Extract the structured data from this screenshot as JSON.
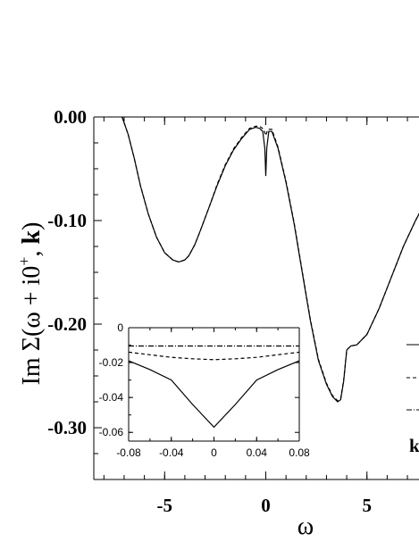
{
  "chart_data": [
    {
      "type": "line",
      "xlabel": "ω",
      "ylabel": "Im Σ(ω + i0⁺, k)",
      "ylabel_parts": {
        "prefix": "Im Σ(ω + i0",
        "sup": "+",
        "suffix": ", ",
        "bold": "k",
        "close": ")"
      },
      "xlim": [
        -8.5,
        8.5
      ],
      "ylim": [
        -0.35,
        0.0
      ],
      "xticks": [
        {
          "v": -5,
          "label": "-5"
        },
        {
          "v": 0,
          "label": "0"
        },
        {
          "v": 5,
          "label": "5"
        }
      ],
      "yticks": [
        {
          "v": 0.0,
          "label": "0.00"
        },
        {
          "v": -0.1,
          "label": "-0.10"
        },
        {
          "v": -0.2,
          "label": "-0.20"
        },
        {
          "v": -0.3,
          "label": "-0.30"
        }
      ],
      "legend_symbol": "k",
      "series": [
        {
          "style": "solid",
          "x": [
            -7.1,
            -6.8,
            -6.5,
            -6.2,
            -5.8,
            -5.4,
            -5.0,
            -4.6,
            -4.3,
            -4.0,
            -3.8,
            -3.5,
            -3.2,
            -2.8,
            -2.4,
            -2.0,
            -1.6,
            -1.2,
            -0.8,
            -0.5,
            -0.3,
            -0.15,
            -0.05,
            0.0,
            0.05,
            0.15,
            0.3,
            0.6,
            1.0,
            1.4,
            1.8,
            2.2,
            2.6,
            3.0,
            3.3,
            3.55,
            3.7,
            3.85,
            4.0,
            4.2,
            4.5,
            5.0,
            5.6,
            6.2,
            6.8,
            7.4,
            8.0,
            8.5
          ],
          "y": [
            0.0,
            -0.017,
            -0.04,
            -0.066,
            -0.094,
            -0.116,
            -0.131,
            -0.138,
            -0.14,
            -0.138,
            -0.134,
            -0.123,
            -0.108,
            -0.087,
            -0.066,
            -0.047,
            -0.032,
            -0.021,
            -0.012,
            -0.01,
            -0.011,
            -0.014,
            -0.03,
            -0.057,
            -0.03,
            -0.014,
            -0.014,
            -0.03,
            -0.063,
            -0.103,
            -0.15,
            -0.196,
            -0.235,
            -0.258,
            -0.27,
            -0.275,
            -0.273,
            -0.255,
            -0.225,
            -0.221,
            -0.22,
            -0.21,
            -0.185,
            -0.155,
            -0.125,
            -0.1,
            -0.078,
            -0.068
          ]
        },
        {
          "style": "dashed",
          "x": [
            -7.1,
            -6.8,
            -6.5,
            -6.2,
            -5.8,
            -5.4,
            -5.0,
            -4.6,
            -4.3,
            -4.0,
            -3.8,
            -3.5,
            -3.2,
            -2.8,
            -2.4,
            -2.0,
            -1.6,
            -1.2,
            -0.8,
            -0.5,
            -0.3,
            -0.1,
            0.0,
            0.1,
            0.3,
            0.6,
            1.0,
            1.4,
            1.8,
            2.2,
            2.6,
            3.0,
            3.3,
            3.55,
            3.7,
            3.85,
            4.0,
            4.2,
            4.5,
            5.0,
            5.6,
            6.2,
            6.8,
            7.4,
            8.0,
            8.5
          ],
          "y": [
            0.0,
            -0.017,
            -0.04,
            -0.066,
            -0.094,
            -0.116,
            -0.131,
            -0.138,
            -0.14,
            -0.138,
            -0.134,
            -0.123,
            -0.108,
            -0.087,
            -0.065,
            -0.046,
            -0.031,
            -0.02,
            -0.011,
            -0.009,
            -0.009,
            -0.012,
            -0.018,
            -0.012,
            -0.012,
            -0.029,
            -0.062,
            -0.102,
            -0.149,
            -0.195,
            -0.234,
            -0.257,
            -0.269,
            -0.274,
            -0.272,
            -0.254,
            -0.225,
            -0.221,
            -0.22,
            -0.21,
            -0.185,
            -0.155,
            -0.125,
            -0.1,
            -0.078,
            -0.068
          ]
        }
      ]
    },
    {
      "type": "line",
      "xlim": [
        -0.08,
        0.08
      ],
      "ylim": [
        -0.065,
        0.0
      ],
      "xticks": [
        {
          "v": -0.08,
          "label": "-0.08"
        },
        {
          "v": -0.04,
          "label": "-0.04"
        },
        {
          "v": 0.0,
          "label": "0"
        },
        {
          "v": 0.04,
          "label": "0.04"
        },
        {
          "v": 0.08,
          "label": "0.08"
        }
      ],
      "yticks": [
        {
          "v": 0.0,
          "label": "0"
        },
        {
          "v": -0.02,
          "label": "-0.02"
        },
        {
          "v": -0.04,
          "label": "-0.04"
        },
        {
          "v": -0.06,
          "label": "-0.06"
        }
      ],
      "series": [
        {
          "style": "solid",
          "x": [
            -0.08,
            -0.06,
            -0.04,
            -0.02,
            0.0,
            0.02,
            0.04,
            0.06,
            0.08
          ],
          "y": [
            -0.019,
            -0.024,
            -0.03,
            -0.044,
            -0.057,
            -0.044,
            -0.03,
            -0.024,
            -0.019
          ]
        },
        {
          "style": "dashed",
          "x": [
            -0.08,
            -0.06,
            -0.04,
            -0.02,
            0.0,
            0.02,
            0.04,
            0.06,
            0.08
          ],
          "y": [
            -0.014,
            -0.0155,
            -0.017,
            -0.0178,
            -0.0183,
            -0.0178,
            -0.017,
            -0.0155,
            -0.014
          ]
        },
        {
          "style": "dashdot",
          "x": [
            -0.08,
            -0.04,
            0.0,
            0.04,
            0.08
          ],
          "y": [
            -0.0105,
            -0.0105,
            -0.0105,
            -0.0105,
            -0.0105
          ]
        }
      ]
    }
  ]
}
